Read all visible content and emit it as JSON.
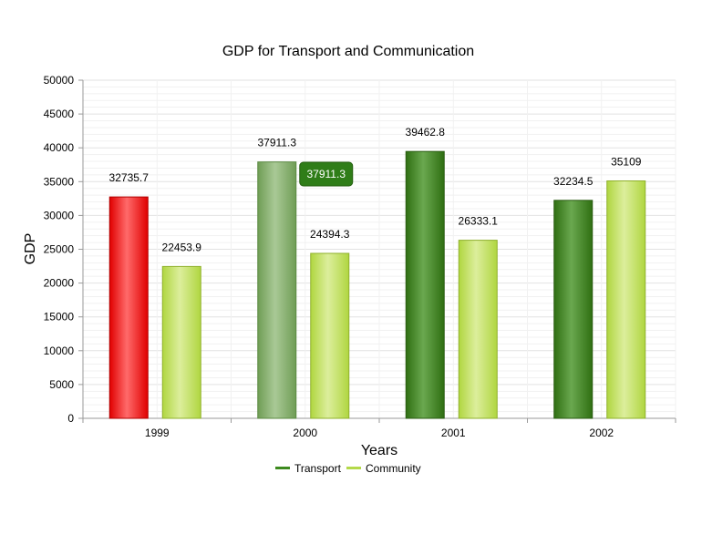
{
  "chart_data": {
    "type": "bar",
    "title": "GDP for Transport and Communication",
    "xlabel": "Years",
    "ylabel": "GDP",
    "categories": [
      "1999",
      "2000",
      "2001",
      "2002"
    ],
    "ylim": [
      0,
      50000
    ],
    "ytick_step": 5000,
    "yticks": [
      "0",
      "5000",
      "10000",
      "15000",
      "20000",
      "25000",
      "30000",
      "35000",
      "40000",
      "45000",
      "50000"
    ],
    "grid": true,
    "legend_position": "bottom-center",
    "series": [
      {
        "name": "Transport",
        "values": [
          32735.7,
          37911.3,
          39462.8,
          32234.5
        ],
        "labels": [
          "32735.7",
          "37911.3",
          "39462.8",
          "32234.5"
        ],
        "color": "#3d8a1e"
      },
      {
        "name": "Community",
        "values": [
          22453.9,
          24394.3,
          26333.1,
          35109
        ],
        "labels": [
          "22453.9",
          "24394.3",
          "26333.1",
          "35109"
        ],
        "color": "#b4d94a"
      }
    ],
    "highlight": {
      "series": 0,
      "index": 0,
      "color": "#ff0000"
    },
    "hover": {
      "series": 0,
      "index": 1,
      "color": "#8ab36e"
    },
    "tooltip": {
      "series": 0,
      "index": 1,
      "text": "37911.3",
      "color": "#2f7d18"
    }
  }
}
